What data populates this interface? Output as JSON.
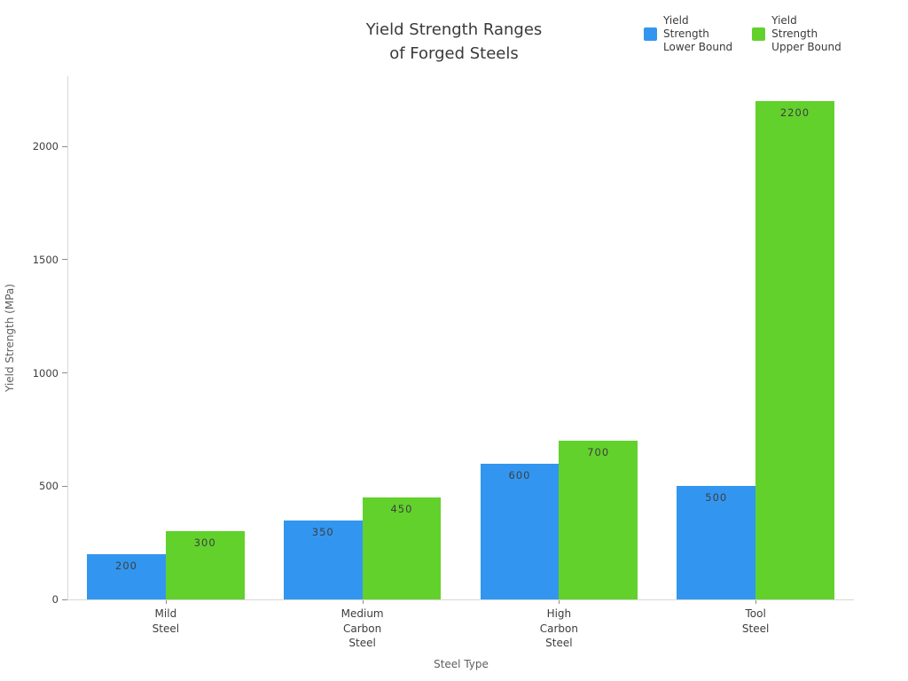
{
  "chart_data": {
    "type": "bar",
    "title": "Yield Strength Ranges of Forged Steels",
    "title_display": "Yield Strength Ranges\nof Forged Steels",
    "xlabel": "Steel Type",
    "ylabel": "Yield Strength (MPa)",
    "categories": [
      "Mild\nSteel",
      "Medium\nCarbon\nSteel",
      "High\nCarbon\nSteel",
      "Tool\nSteel"
    ],
    "series": [
      {
        "name": "Yield Strength Lower Bound",
        "legend_label": "Yield\nStrength\nLower Bound",
        "color": "#3296f0",
        "values": [
          200,
          350,
          600,
          500
        ]
      },
      {
        "name": "Yield Strength Upper Bound",
        "legend_label": "Yield\nStrength\nUpper Bound",
        "color": "#62d12c",
        "values": [
          300,
          450,
          700,
          2200
        ]
      }
    ],
    "yticks": [
      0,
      500,
      1000,
      1500,
      2000
    ],
    "ylim": [
      0,
      2310
    ],
    "grid": false,
    "bar_labels": true,
    "bar_label_position": "inside-top",
    "legend_position": "top-right",
    "background_color": "#ffffff",
    "axis_line_color": "#d8d8d8",
    "text_color": "#3d3d3d"
  }
}
